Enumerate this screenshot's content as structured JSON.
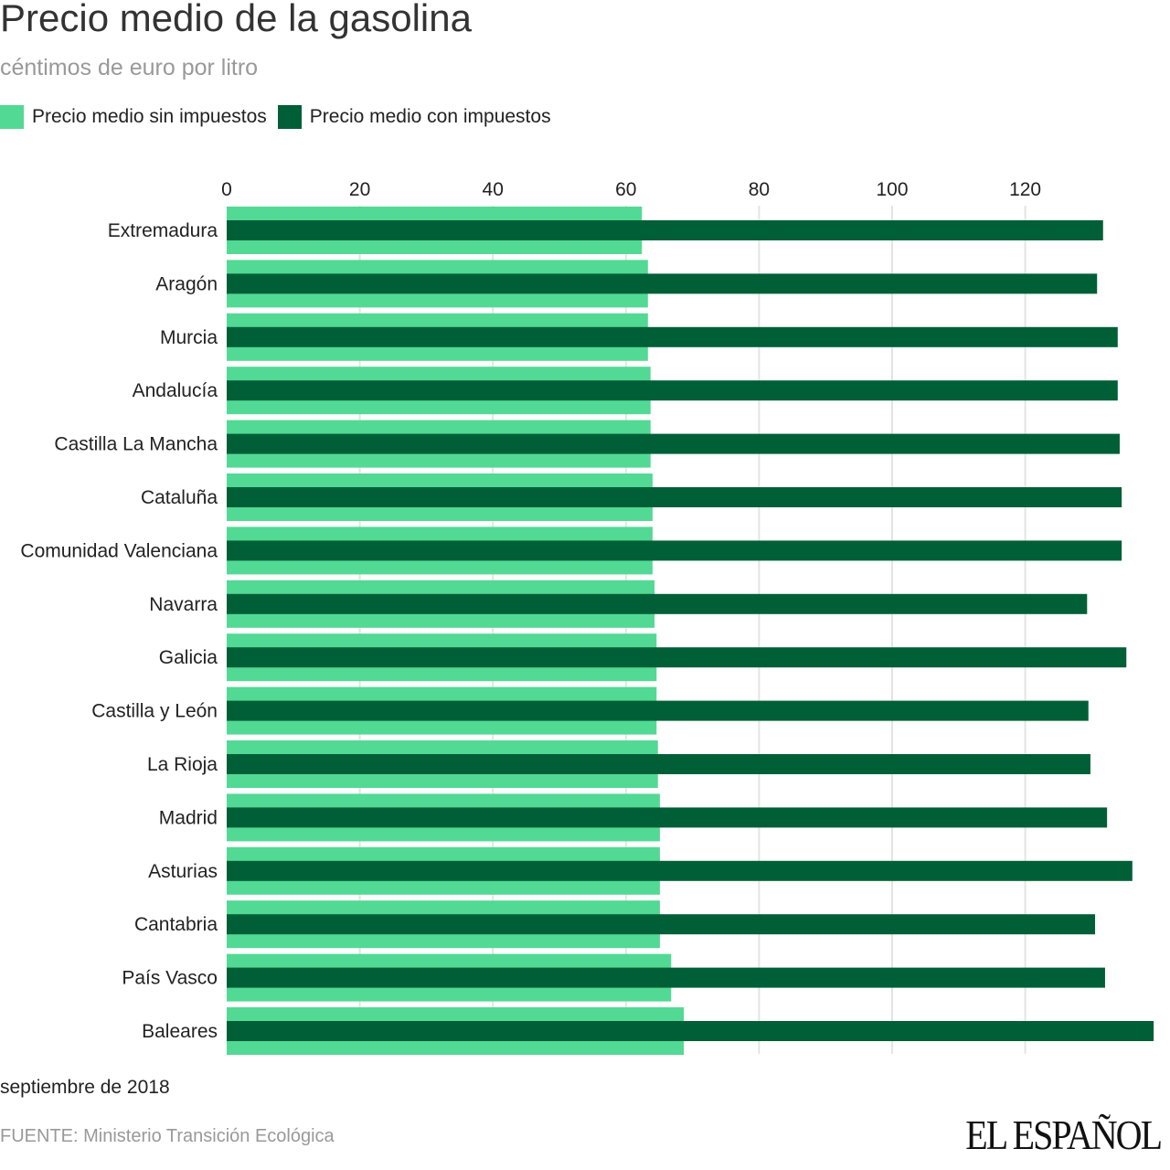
{
  "chart_data": {
    "type": "bar",
    "orientation": "horizontal",
    "title": "Precio medio de la gasolina",
    "subtitle": "céntimos de euro por litro",
    "categories": [
      "Extremadura",
      "Aragón",
      "Murcia",
      "Andalucía",
      "Castilla La Mancha",
      "Cataluña",
      "Comunidad Valenciana",
      "Navarra",
      "Galicia",
      "Castilla y León",
      "La Rioja",
      "Madrid",
      "Asturias",
      "Cantabria",
      "País Vasco",
      "Baleares"
    ],
    "series": [
      {
        "name": "Precio medio sin impuestos",
        "color": "#52d994",
        "values": [
          62.4,
          63.3,
          63.3,
          63.7,
          63.7,
          64.0,
          64.0,
          64.3,
          64.6,
          64.6,
          64.8,
          65.1,
          65.1,
          65.1,
          66.8,
          68.7
        ]
      },
      {
        "name": "Precio medio con impuestos",
        "color": "#005f36",
        "values": [
          131.7,
          130.8,
          133.9,
          133.9,
          134.2,
          134.5,
          134.5,
          129.3,
          135.2,
          129.5,
          129.8,
          132.3,
          136.1,
          130.5,
          132.0,
          139.3
        ]
      }
    ],
    "xticks": [
      "0",
      "20",
      "40",
      "60",
      "80",
      "100",
      "120"
    ],
    "xlim": [
      0,
      140
    ],
    "grid": true,
    "legend": "top-left",
    "note": "septiembre de 2018",
    "source": "FUENTE: Ministerio Transición Ecológica"
  },
  "brand": "EL ESPAÑOL"
}
